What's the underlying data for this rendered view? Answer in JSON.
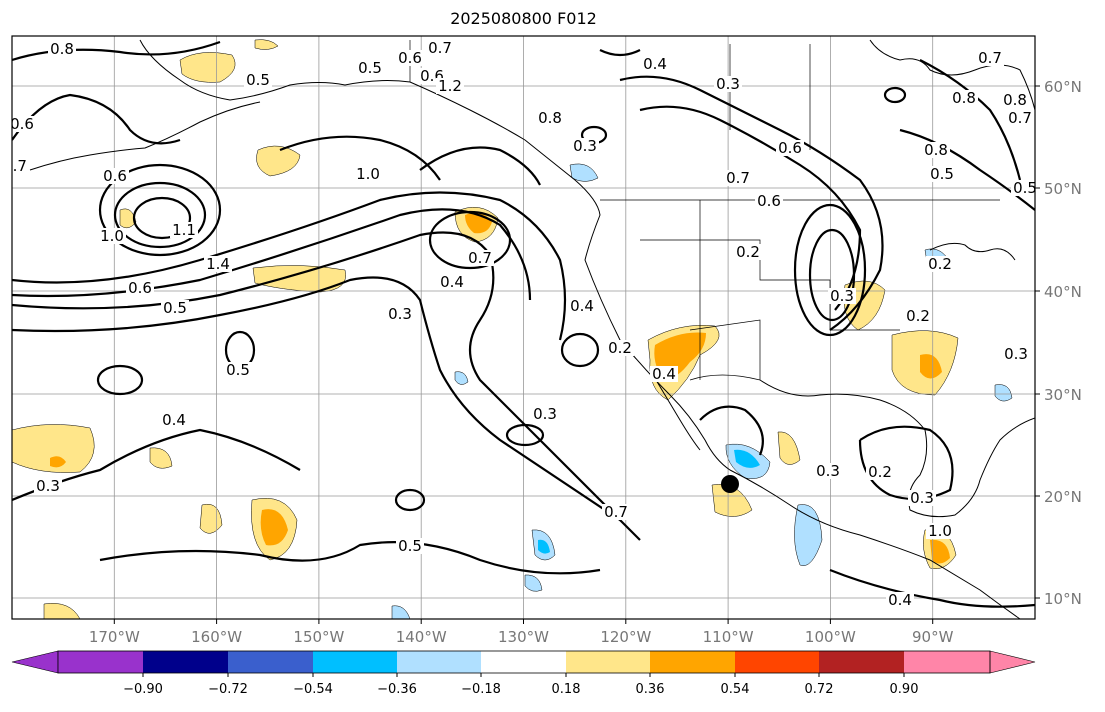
{
  "title": "2025080800 F012",
  "map": {
    "type": "contour_map",
    "projection": "plate-carree",
    "lon_range": [
      -180,
      -80
    ],
    "lat_range": [
      7,
      65
    ],
    "lon_ticks": [
      "170°W",
      "160°W",
      "150°W",
      "140°W",
      "130°W",
      "120°W",
      "110°W",
      "100°W",
      "90°W"
    ],
    "lat_ticks": [
      "60°N",
      "50°N",
      "40°N",
      "30°N",
      "20°N",
      "10°N"
    ],
    "grid": true,
    "contour_labels": [
      "0.8",
      "0.7",
      "0.6",
      "0.6",
      "0.5",
      "0.5",
      "0.4",
      "0.7",
      "0.3",
      "0.8",
      "0.6",
      "0.5",
      "0.7",
      "0.6",
      "0.8",
      "0.5",
      "0.7",
      "0.6",
      "1.0",
      "1.1",
      "1.0",
      "1.4",
      "0.6",
      "0.5",
      "0.7",
      "0.4",
      "0.3",
      "0.4",
      "0.5",
      "0.4",
      "0.3",
      "0.4",
      "0.3",
      "0.5",
      "0.7",
      "0.3",
      "0.2",
      "0.7",
      "0.6",
      "0.2",
      "0.3",
      "0.8",
      "1.0",
      "0.3",
      "1.2",
      "0.8",
      "0.2",
      "0.3",
      "0.4",
      "0.2",
      "0.2",
      "0.3"
    ],
    "marker": {
      "label": "storm-center",
      "lon": -110,
      "lat": 21
    }
  },
  "colorbar": {
    "colors": [
      "#9932cc",
      "#00008b",
      "#3a5fcd",
      "#00bfff",
      "#b0e0ff",
      "#ffffff",
      "#ffe68a",
      "#ffa500",
      "#ff4500",
      "#b22222",
      "#ff85a8",
      "#ff85a8"
    ],
    "tick_labels": [
      "−0.90",
      "−0.72",
      "−0.54",
      "−0.36",
      "−0.18",
      "0.18",
      "0.36",
      "0.54",
      "0.72",
      "0.90"
    ]
  },
  "colors": {
    "land_outline": "#000000",
    "contour": "#000000",
    "grid": "#999999"
  }
}
